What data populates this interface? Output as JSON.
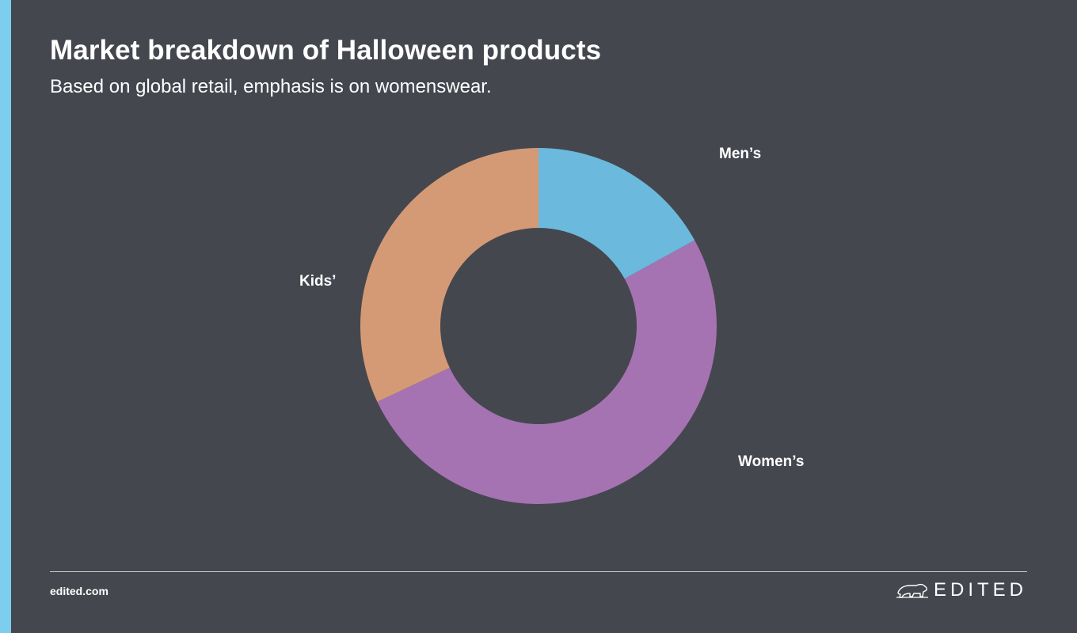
{
  "header": {
    "title": "Market breakdown of Halloween products",
    "subtitle": "Based on global retail, emphasis is on womenswear."
  },
  "colors": {
    "background": "#45474f",
    "accent": "#7dcdee",
    "mens": "#6bb9dd",
    "womens": "#a573b2",
    "kids": "#d49a75"
  },
  "chart_data": {
    "type": "pie",
    "style": "donut",
    "title": "Market breakdown of Halloween products",
    "categories": [
      "Men’s",
      "Women’s",
      "Kids’"
    ],
    "values": [
      17,
      51,
      32
    ],
    "unit": "%",
    "colors": [
      "#6bb9dd",
      "#a573b2",
      "#d49a75"
    ],
    "start": "12 o'clock",
    "direction": "clockwise",
    "legend": "none"
  },
  "footer": {
    "site": "edited.com",
    "brand": "EDITED",
    "brand_icon": "polar-bear-icon"
  }
}
